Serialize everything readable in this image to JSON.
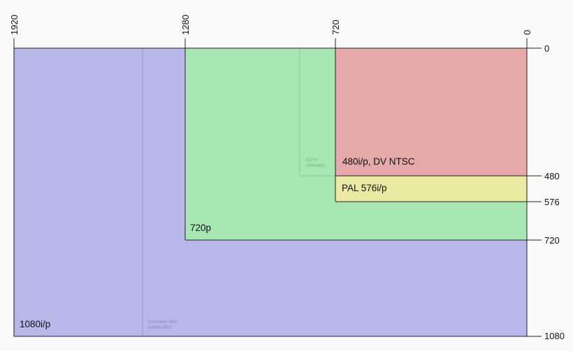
{
  "diagram": {
    "top_axis_ticks": [
      "1920",
      "1280",
      "720",
      "0"
    ],
    "right_axis_ticks": [
      "0",
      "480",
      "576",
      "720",
      "1080"
    ],
    "regions": {
      "r1080": {
        "label": "1080i/p",
        "color": "#b7b7e9"
      },
      "r720": {
        "label": "720p",
        "color": "#a8e6b3"
      },
      "r576": {
        "label": "PAL 576i/p",
        "color": "#ebe9a2"
      },
      "r480": {
        "label": "480i/p, DV NTSC",
        "color": "#e6a9a9"
      }
    },
    "sub_regions": {
      "hdv": {
        "line1": "Consumer HDV",
        "line2": "(1440x1080)"
      },
      "edtv": {
        "line1": "EDTV",
        "line2": "(854x480)"
      }
    }
  }
}
